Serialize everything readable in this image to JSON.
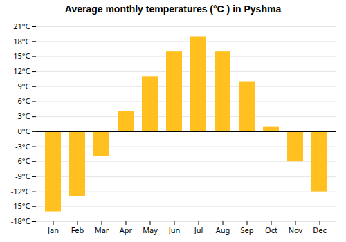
{
  "chart_data": {
    "type": "bar",
    "title": "Average monthly temperatures (°C ) in Pyshma",
    "categories": [
      "Jan",
      "Feb",
      "Mar",
      "Apr",
      "May",
      "Jun",
      "Jul",
      "Aug",
      "Sep",
      "Oct",
      "Nov",
      "Dec"
    ],
    "values": [
      -16,
      -13,
      -5,
      4,
      11,
      16,
      19,
      16,
      10,
      1,
      -6,
      -12
    ],
    "color": "#FFC020",
    "ylim": [
      -18,
      21
    ],
    "yticks": [
      {
        "value": -18,
        "label": "-18°C"
      },
      {
        "value": -15,
        "label": "-15°C"
      },
      {
        "value": -12,
        "label": "-12°C"
      },
      {
        "value": -9,
        "label": "-9°C"
      },
      {
        "value": -6,
        "label": "-6°C"
      },
      {
        "value": -3,
        "label": "-3°C"
      },
      {
        "value": 0,
        "label": "0°C"
      },
      {
        "value": 3,
        "label": "3°C"
      },
      {
        "value": 6,
        "label": "6°C"
      },
      {
        "value": 9,
        "label": "9°C"
      },
      {
        "value": 12,
        "label": "12°C"
      },
      {
        "value": 15,
        "label": "15°C"
      },
      {
        "value": 18,
        "label": "18°C"
      },
      {
        "value": 21,
        "label": "21°C"
      }
    ],
    "grid": true
  }
}
